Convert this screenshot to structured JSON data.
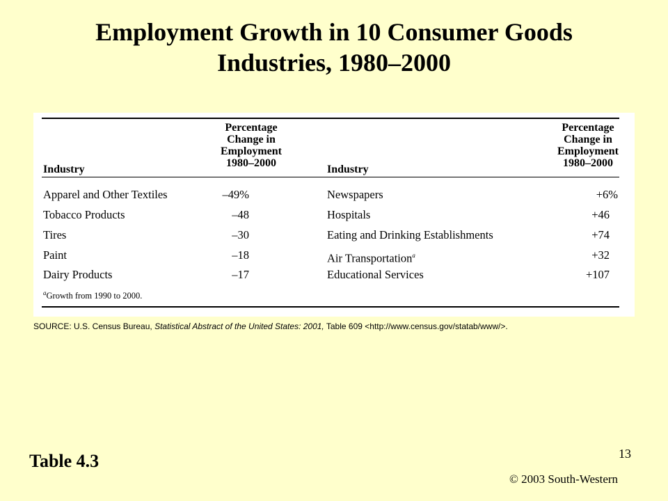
{
  "title": {
    "line1": "Employment  Growth  in 10 Consumer Goods",
    "line2": "Industries, 1980–2000"
  },
  "table": {
    "headers": {
      "left_industry": "Industry",
      "left_change": [
        "Percentage",
        "Change in",
        "Employment",
        "1980–2000"
      ],
      "right_industry": "Industry",
      "right_change": [
        "Percentage",
        "Change in",
        "Employment",
        "1980–2000"
      ]
    },
    "rows": [
      {
        "left_industry": "Apparel and Other Textiles",
        "left_value": "–49%",
        "right_industry": "Newspapers",
        "right_value": "+6%",
        "right_note": ""
      },
      {
        "left_industry": "Tobacco Products",
        "left_value": "–48",
        "right_industry": "Hospitals",
        "right_value": "+46",
        "right_note": ""
      },
      {
        "left_industry": "Tires",
        "left_value": "–30",
        "right_industry": "Eating and Drinking Establishments",
        "right_value": "+74",
        "right_note": ""
      },
      {
        "left_industry": "Paint",
        "left_value": "–18",
        "right_industry": "Air Transportation",
        "right_value": "+32",
        "right_note": "a"
      },
      {
        "left_industry": "Dairy Products",
        "left_value": "–17",
        "right_industry": "Educational Services",
        "right_value": "+107",
        "right_note": ""
      }
    ],
    "footnote_marker": "a",
    "footnote_text": "Growth from 1990 to 2000."
  },
  "source": {
    "prefix": "SOURCE: U.S. Census Bureau, ",
    "italic": "Statistical Abstract of the United States: 2001,",
    "suffix": " Table 609 <http://www.census.gov/statab/www/>."
  },
  "table_label": "Table 4.3",
  "page_number": "13",
  "copyright": "© 2003 South-Western"
}
